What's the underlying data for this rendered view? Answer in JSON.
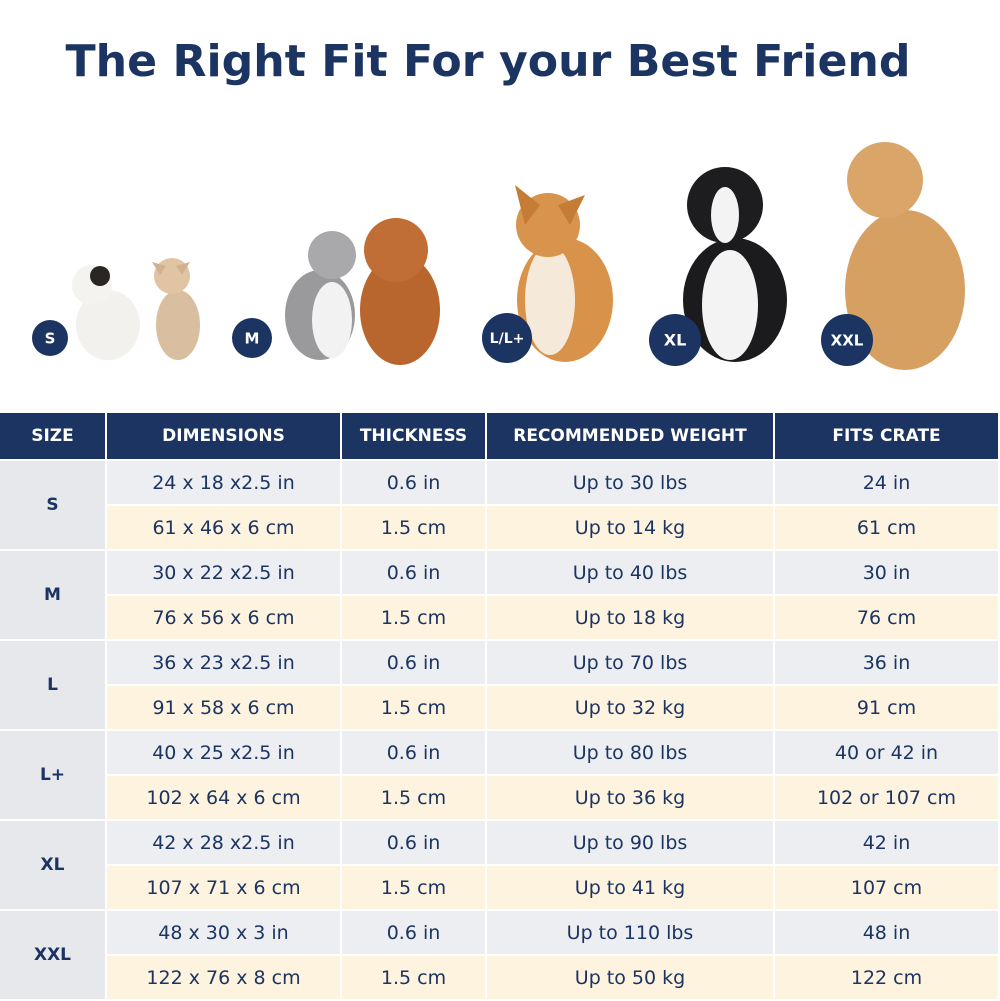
{
  "title": "The Right Fit For your Best Friend",
  "badges": [
    "S",
    "M",
    "L/L+",
    "XL",
    "XXL"
  ],
  "table": {
    "header": [
      "SIZE",
      "DIMENSIONS",
      "THICKNESS",
      "RECOMMENDED WEIGHT",
      "FITS CRATE"
    ],
    "groups": [
      {
        "size": "S",
        "rows": [
          [
            "24 x 18 x2.5 in",
            "0.6 in",
            "Up to 30 lbs",
            "24 in"
          ],
          [
            "61 x 46 x 6 cm",
            "1.5 cm",
            "Up to 14 kg",
            "61 cm"
          ]
        ]
      },
      {
        "size": "M",
        "rows": [
          [
            "30 x 22 x2.5 in",
            "0.6 in",
            "Up to 40 lbs",
            "30 in"
          ],
          [
            "76 x 56 x 6 cm",
            "1.5 cm",
            "Up to 18 kg",
            "76 cm"
          ]
        ]
      },
      {
        "size": "L",
        "rows": [
          [
            "36 x 23 x2.5 in",
            "0.6 in",
            "Up to 70 lbs",
            "36 in"
          ],
          [
            "91 x 58 x 6 cm",
            "1.5 cm",
            "Up to 32 kg",
            "91 cm"
          ]
        ]
      },
      {
        "size": "L+",
        "rows": [
          [
            "40 x 25 x2.5 in",
            "0.6 in",
            "Up to 80 lbs",
            "40 or 42 in"
          ],
          [
            "102 x 64 x 6 cm",
            "1.5 cm",
            "Up to 36 kg",
            "102 or 107 cm"
          ]
        ]
      },
      {
        "size": "XL",
        "rows": [
          [
            "42 x 28 x2.5 in",
            "0.6 in",
            "Up to 90 lbs",
            "42 in"
          ],
          [
            "107 x 71 x 6 cm",
            "1.5 cm",
            "Up to 41 kg",
            "107 cm"
          ]
        ]
      },
      {
        "size": "XXL",
        "rows": [
          [
            "48 x 30 x 3 in",
            "0.6 in",
            "Up to 110 lbs",
            "48 in"
          ],
          [
            "122 x 76 x 8 cm",
            "1.5 cm",
            "Up to 50 kg",
            "122 cm"
          ]
        ]
      }
    ]
  }
}
